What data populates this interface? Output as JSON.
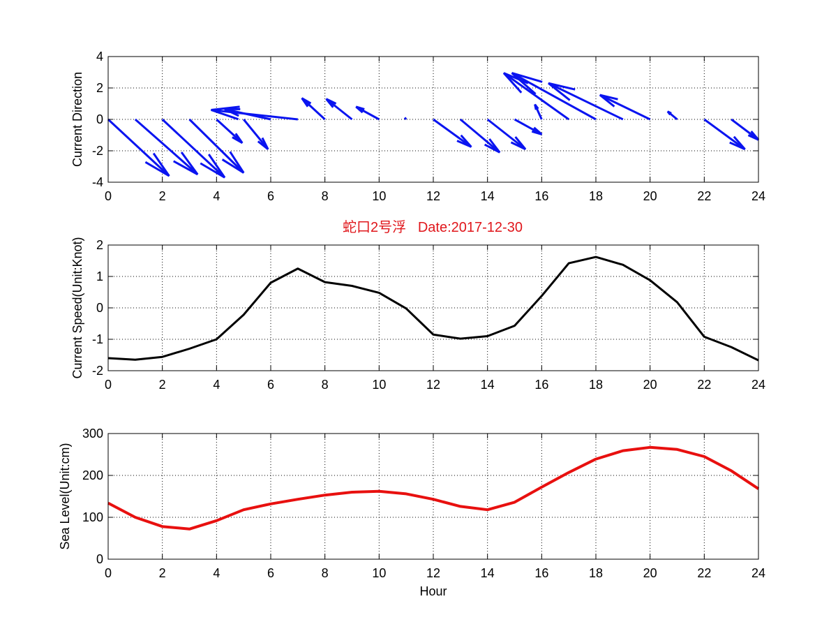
{
  "figure_title": "蛇口2号浮   Date:2017-12-30",
  "colors": {
    "title": "#e0161b",
    "quiver": "#0a14f0",
    "speed": "#000000",
    "sea_level": "#e8100f",
    "grid": "#000000",
    "axes": "#000000",
    "background": "#ffffff"
  },
  "chart_data": [
    {
      "type": "quiver",
      "title": "",
      "xlabel": "",
      "ylabel": "Current Direction",
      "xlim": [
        0,
        24
      ],
      "ylim": [
        -4,
        4
      ],
      "xticks": [
        "0",
        "2",
        "4",
        "6",
        "8",
        "10",
        "12",
        "14",
        "16",
        "18",
        "20",
        "22",
        "24"
      ],
      "yticks": [
        "-4",
        "-2",
        "0",
        "2",
        "4"
      ],
      "grid": true,
      "series": [
        {
          "color": "quiver",
          "arrows": [
            {
              "x": 0,
              "y": 0,
              "u": 2.25,
              "v": -3.6
            },
            {
              "x": 1,
              "y": 0,
              "u": 2.3,
              "v": -3.5
            },
            {
              "x": 2,
              "y": 0,
              "u": 2.3,
              "v": -3.7
            },
            {
              "x": 3,
              "y": 0,
              "u": 2.0,
              "v": -3.4
            },
            {
              "x": 4,
              "y": 0,
              "u": 0.95,
              "v": -1.5
            },
            {
              "x": 5,
              "y": 0,
              "u": 0.9,
              "v": -1.9
            },
            {
              "x": 6,
              "y": 0,
              "u": -1.7,
              "v": 0.65
            },
            {
              "x": 7,
              "y": 0,
              "u": -3.2,
              "v": 0.6
            },
            {
              "x": 8,
              "y": 0,
              "u": -0.85,
              "v": 1.35
            },
            {
              "x": 9,
              "y": 0,
              "u": -0.95,
              "v": 1.3
            },
            {
              "x": 10,
              "y": 0,
              "u": -0.85,
              "v": 0.8
            },
            {
              "x": 11,
              "y": 0,
              "u": -0.05,
              "v": 0.1
            },
            {
              "x": 12,
              "y": 0,
              "u": 1.4,
              "v": -1.75
            },
            {
              "x": 13,
              "y": 0,
              "u": 1.45,
              "v": -2.1
            },
            {
              "x": 14,
              "y": 0,
              "u": 1.4,
              "v": -1.9
            },
            {
              "x": 15,
              "y": 0,
              "u": 1.0,
              "v": -0.95
            },
            {
              "x": 16,
              "y": 0,
              "u": -0.25,
              "v": 0.95
            },
            {
              "x": 17,
              "y": 0,
              "u": -2.4,
              "v": 2.95
            },
            {
              "x": 18,
              "y": 0,
              "u": -3.1,
              "v": 2.95
            },
            {
              "x": 19,
              "y": 0,
              "u": -2.75,
              "v": 2.3
            },
            {
              "x": 20,
              "y": 0,
              "u": -1.85,
              "v": 1.55
            },
            {
              "x": 21,
              "y": 0,
              "u": -0.35,
              "v": 0.5
            },
            {
              "x": 22,
              "y": 0,
              "u": 1.5,
              "v": -1.9
            },
            {
              "x": 23,
              "y": 0,
              "u": 1.0,
              "v": -1.3
            }
          ]
        }
      ]
    },
    {
      "type": "line",
      "title": "蛇口2号浮   Date:2017-12-30",
      "xlabel": "",
      "ylabel": "Current Speed(Unit:Knot)",
      "xlim": [
        0,
        24
      ],
      "ylim": [
        -2,
        2
      ],
      "xticks": [
        "0",
        "2",
        "4",
        "6",
        "8",
        "10",
        "12",
        "14",
        "16",
        "18",
        "20",
        "22",
        "24"
      ],
      "yticks": [
        "-2",
        "-1",
        "0",
        "1",
        "2"
      ],
      "grid": true,
      "x": [
        0,
        1,
        2,
        3,
        4,
        5,
        6,
        7,
        8,
        9,
        10,
        11,
        12,
        13,
        14,
        15,
        16,
        17,
        18,
        19,
        20,
        21,
        22,
        23,
        24
      ],
      "series": [
        {
          "color": "speed",
          "values": [
            -1.6,
            -1.65,
            -1.56,
            -1.3,
            -1.0,
            -0.22,
            0.8,
            1.25,
            0.82,
            0.7,
            0.48,
            -0.02,
            -0.85,
            -0.98,
            -0.9,
            -0.57,
            0.38,
            1.42,
            1.62,
            1.37,
            0.88,
            0.18,
            -0.92,
            -1.25,
            -1.67
          ]
        }
      ]
    },
    {
      "type": "line",
      "title": "",
      "xlabel": "Hour",
      "ylabel": "Sea Level(Unit:cm)",
      "xlim": [
        0,
        24
      ],
      "ylim": [
        0,
        300
      ],
      "xticks": [
        "0",
        "2",
        "4",
        "6",
        "8",
        "10",
        "12",
        "14",
        "16",
        "18",
        "20",
        "22",
        "24"
      ],
      "yticks": [
        "0",
        "100",
        "200",
        "300"
      ],
      "grid": true,
      "x": [
        0,
        1,
        2,
        3,
        4,
        5,
        6,
        7,
        8,
        9,
        10,
        11,
        12,
        13,
        14,
        15,
        16,
        17,
        18,
        19,
        20,
        21,
        22,
        23,
        24
      ],
      "series": [
        {
          "color": "sea_level",
          "values": [
            134,
            100,
            78,
            72,
            92,
            118,
            132,
            143,
            153,
            160,
            162,
            156,
            143,
            126,
            118,
            136,
            172,
            207,
            239,
            259,
            267,
            262,
            245,
            211,
            168
          ]
        }
      ]
    }
  ]
}
